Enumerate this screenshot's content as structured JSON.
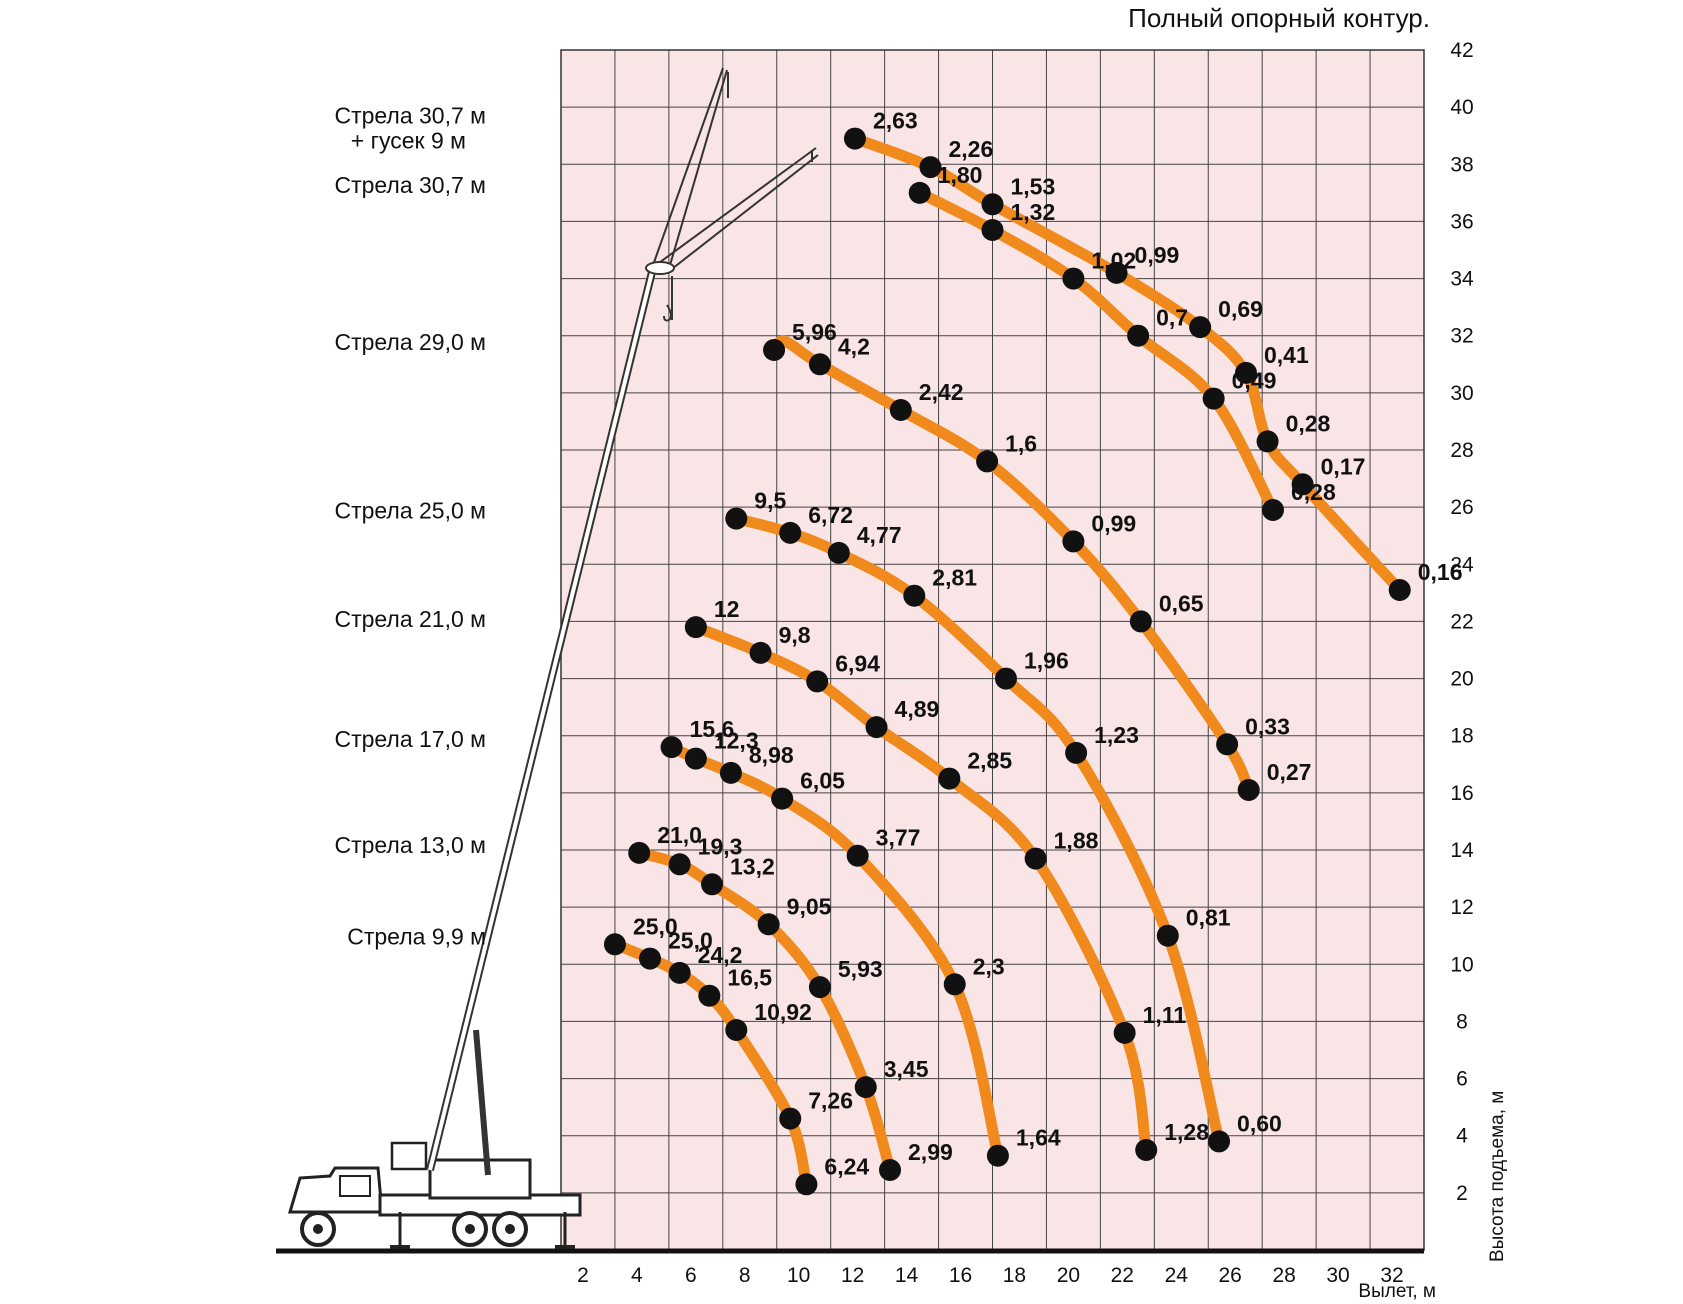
{
  "chart_data": {
    "type": "line",
    "title": "Полный опорный контур.",
    "xlabel": "Вылет, м",
    "ylabel": "Высота подъема, м",
    "xlim": [
      0,
      32
    ],
    "ylim": [
      0,
      42
    ],
    "x_ticks": [
      "2",
      "4",
      "6",
      "8",
      "10",
      "12",
      "14",
      "16",
      "18",
      "20",
      "22",
      "24",
      "26",
      "28",
      "30",
      "32"
    ],
    "y_ticks": [
      "2",
      "4",
      "6",
      "8",
      "10",
      "12",
      "14",
      "16",
      "18",
      "20",
      "22",
      "24",
      "26",
      "28",
      "30",
      "32",
      "34",
      "36",
      "38",
      "40",
      "42"
    ],
    "grid": true,
    "colors": {
      "curve": "#f08a1c",
      "point": "#111111",
      "plot_background": "#f9e4e6",
      "grid": "#444444",
      "crane": "#333333"
    },
    "series": [
      {
        "name": "Стрела 9,9 м",
        "points": [
          {
            "x": 2.0,
            "y": 10.7,
            "label": "25,0"
          },
          {
            "x": 3.3,
            "y": 10.2,
            "label": "25,0"
          },
          {
            "x": 4.4,
            "y": 9.7,
            "label": "24,2"
          },
          {
            "x": 5.5,
            "y": 8.9,
            "label": "16,5"
          },
          {
            "x": 6.5,
            "y": 7.7,
            "label": "10,92"
          },
          {
            "x": 8.5,
            "y": 4.6,
            "label": "7,26"
          },
          {
            "x": 9.1,
            "y": 2.3,
            "label": "6,24"
          }
        ]
      },
      {
        "name": "Стрела 13,0 м",
        "points": [
          {
            "x": 2.9,
            "y": 13.9,
            "label": "21,0"
          },
          {
            "x": 4.4,
            "y": 13.5,
            "label": "19,3"
          },
          {
            "x": 5.6,
            "y": 12.8,
            "label": "13,2"
          },
          {
            "x": 7.7,
            "y": 11.4,
            "label": "9,05"
          },
          {
            "x": 9.6,
            "y": 9.2,
            "label": "5,93"
          },
          {
            "x": 11.3,
            "y": 5.7,
            "label": "3,45"
          },
          {
            "x": 12.2,
            "y": 2.8,
            "label": "2,99"
          }
        ]
      },
      {
        "name": "Стрела 17,0 м",
        "points": [
          {
            "x": 4.1,
            "y": 17.6,
            "label": "15,6"
          },
          {
            "x": 5.0,
            "y": 17.2,
            "label": "12,3"
          },
          {
            "x": 6.3,
            "y": 16.7,
            "label": "8,98"
          },
          {
            "x": 8.2,
            "y": 15.8,
            "label": "6,05"
          },
          {
            "x": 11.0,
            "y": 13.8,
            "label": "3,77"
          },
          {
            "x": 14.6,
            "y": 9.3,
            "label": "2,3"
          },
          {
            "x": 16.2,
            "y": 3.3,
            "label": "1,64"
          }
        ]
      },
      {
        "name": "Стрела 21,0 м",
        "points": [
          {
            "x": 5.0,
            "y": 21.8,
            "label": "12"
          },
          {
            "x": 7.4,
            "y": 20.9,
            "label": "9,8"
          },
          {
            "x": 9.5,
            "y": 19.9,
            "label": "6,94"
          },
          {
            "x": 11.7,
            "y": 18.3,
            "label": "4,89"
          },
          {
            "x": 14.4,
            "y": 16.5,
            "label": "2,85"
          },
          {
            "x": 17.6,
            "y": 13.7,
            "label": "1,88"
          },
          {
            "x": 20.9,
            "y": 7.6,
            "label": "1,11"
          },
          {
            "x": 21.7,
            "y": 3.5,
            "label": "1,28"
          }
        ]
      },
      {
        "name": "Стрела 25,0 м",
        "points": [
          {
            "x": 6.5,
            "y": 25.6,
            "label": "9,5"
          },
          {
            "x": 8.5,
            "y": 25.1,
            "label": "6,72"
          },
          {
            "x": 10.3,
            "y": 24.4,
            "label": "4,77"
          },
          {
            "x": 13.1,
            "y": 22.9,
            "label": "2,81"
          },
          {
            "x": 16.5,
            "y": 20.0,
            "label": "1,96"
          },
          {
            "x": 19.1,
            "y": 17.4,
            "label": "1,23"
          },
          {
            "x": 22.5,
            "y": 11.0,
            "label": "0,81"
          },
          {
            "x": 24.4,
            "y": 3.8,
            "label": "0,60"
          }
        ]
      },
      {
        "name": "Стрела 29,0 м",
        "points": [
          {
            "x": 7.9,
            "y": 31.5,
            "label": "5,96"
          },
          {
            "x": 9.6,
            "y": 31.0,
            "label": "4,2"
          },
          {
            "x": 12.6,
            "y": 29.4,
            "label": "2,42"
          },
          {
            "x": 15.8,
            "y": 27.6,
            "label": "1,6"
          },
          {
            "x": 19.0,
            "y": 24.8,
            "label": "0,99"
          },
          {
            "x": 21.5,
            "y": 22.0,
            "label": "0,65"
          },
          {
            "x": 24.7,
            "y": 17.7,
            "label": "0,33"
          },
          {
            "x": 25.5,
            "y": 16.1,
            "label": "0,27"
          },
          {
            "x": 8.3,
            "y": 31.8,
            "label": ""
          }
        ]
      },
      {
        "name": "Стрела 30,7 м",
        "points": [
          {
            "x": 13.3,
            "y": 37.0,
            "label": "1,80"
          },
          {
            "x": 16.0,
            "y": 35.7,
            "label": "1,32"
          },
          {
            "x": 19.0,
            "y": 34.0,
            "label": "1,02"
          },
          {
            "x": 21.4,
            "y": 32.0,
            "label": "0,7"
          },
          {
            "x": 24.2,
            "y": 29.8,
            "label": "0,49"
          },
          {
            "x": 26.4,
            "y": 25.9,
            "label": "0,28"
          }
        ]
      },
      {
        "name": "Стрела 30,7 м + гусек 9 м",
        "points": [
          {
            "x": 10.9,
            "y": 38.9,
            "label": "2,63"
          },
          {
            "x": 13.7,
            "y": 37.9,
            "label": "2,26"
          },
          {
            "x": 16.0,
            "y": 36.6,
            "label": "1,53"
          },
          {
            "x": 20.6,
            "y": 34.2,
            "label": "0,99"
          },
          {
            "x": 23.7,
            "y": 32.3,
            "label": "0,69"
          },
          {
            "x": 25.4,
            "y": 30.7,
            "label": "0,41"
          },
          {
            "x": 26.2,
            "y": 28.3,
            "label": "0,28"
          },
          {
            "x": 27.5,
            "y": 26.8,
            "label": "0,17"
          },
          {
            "x": 31.1,
            "y": 23.1,
            "label": "0,16"
          }
        ]
      }
    ]
  }
}
